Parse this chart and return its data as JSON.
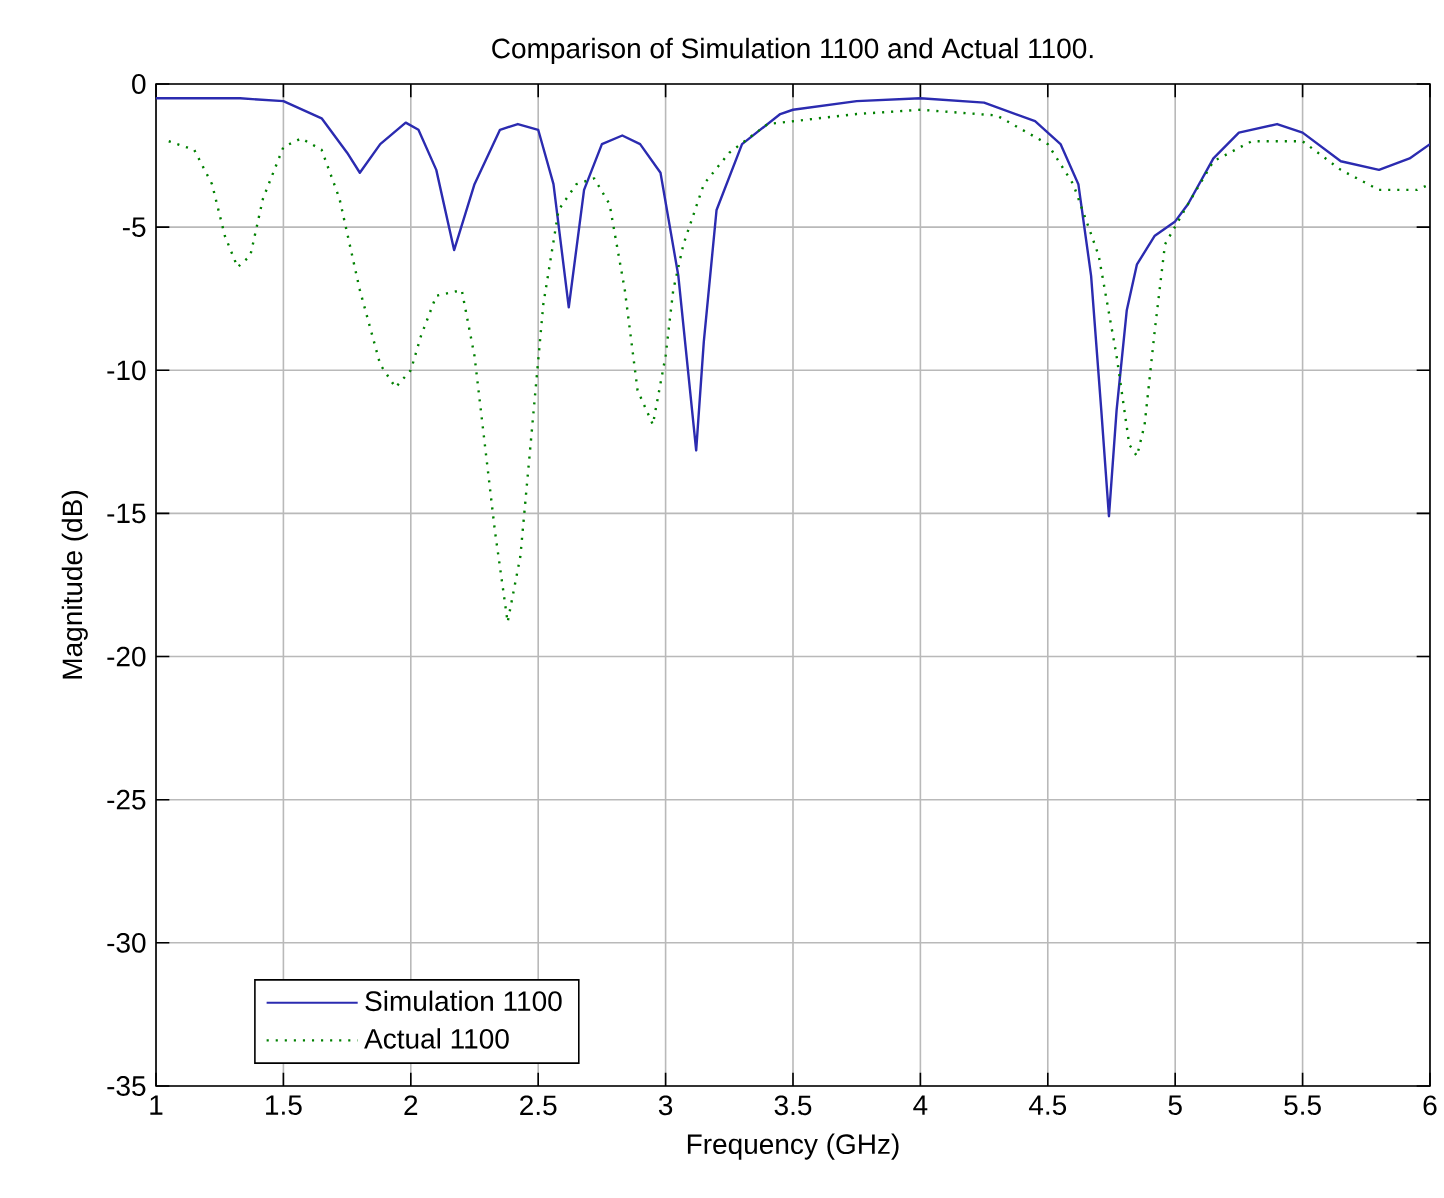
{
  "chart_data": {
    "type": "line",
    "title": "Comparison of Simulation 1100 and Actual 1100.",
    "xlabel": "Frequency (GHz)",
    "ylabel": "Magnitude (dB)",
    "xlim": [
      1,
      6
    ],
    "ylim": [
      -35,
      0
    ],
    "xticks": [
      1,
      1.5,
      2,
      2.5,
      3,
      3.5,
      4,
      4.5,
      5,
      5.5,
      6
    ],
    "yticks": [
      -35,
      -30,
      -25,
      -20,
      -15,
      -10,
      -5,
      0
    ],
    "grid": true,
    "legend": "bottom left",
    "marker": "none",
    "series": [
      {
        "name": "Simulation 1100",
        "color": "#2b2bb0",
        "line_style": "solid",
        "x": [
          1,
          1.33,
          1.5,
          1.65,
          1.75,
          1.8,
          1.88,
          1.98,
          2.03,
          2.1,
          2.17,
          2.25,
          2.35,
          2.42,
          2.5,
          2.56,
          2.62,
          2.68,
          2.75,
          2.83,
          2.9,
          2.98,
          3.05,
          3.12,
          3.15,
          3.2,
          3.3,
          3.45,
          3.5,
          3.75,
          4.0,
          4.25,
          4.45,
          4.55,
          4.62,
          4.67,
          4.71,
          4.74,
          4.77,
          4.81,
          4.85,
          4.92,
          5.0,
          5.05,
          5.15,
          5.25,
          5.4,
          5.5,
          5.65,
          5.8,
          5.92,
          6.0
        ],
        "values": [
          -0.5,
          -0.5,
          -0.6,
          -1.2,
          -2.4,
          -3.1,
          -2.1,
          -1.35,
          -1.6,
          -3.0,
          -5.8,
          -3.5,
          -1.6,
          -1.4,
          -1.6,
          -3.5,
          -7.8,
          -3.7,
          -2.1,
          -1.8,
          -2.1,
          -3.1,
          -6.7,
          -12.8,
          -9.0,
          -4.4,
          -2.1,
          -1.05,
          -0.9,
          -0.6,
          -0.5,
          -0.65,
          -1.3,
          -2.1,
          -3.5,
          -6.7,
          -11.4,
          -15.1,
          -11.4,
          -7.9,
          -6.3,
          -5.3,
          -4.8,
          -4.2,
          -2.6,
          -1.7,
          -1.4,
          -1.7,
          -2.7,
          -3.0,
          -2.6,
          -2.1
        ]
      },
      {
        "name": "Actual 1100",
        "color": "#008000",
        "line_style": "dotted",
        "x": [
          1.05,
          1.15,
          1.22,
          1.27,
          1.32,
          1.37,
          1.42,
          1.5,
          1.57,
          1.65,
          1.72,
          1.8,
          1.88,
          1.94,
          2.0,
          2.04,
          2.1,
          2.2,
          2.25,
          2.33,
          2.38,
          2.43,
          2.47,
          2.52,
          2.58,
          2.65,
          2.72,
          2.78,
          2.84,
          2.89,
          2.95,
          3.0,
          3.03,
          3.07,
          3.15,
          3.25,
          3.4,
          3.5,
          3.75,
          4.0,
          4.3,
          4.5,
          4.6,
          4.7,
          4.77,
          4.82,
          4.85,
          4.88,
          4.92,
          4.96,
          5.05,
          5.15,
          5.3,
          5.5,
          5.65,
          5.8,
          5.95,
          6.0
        ],
        "values": [
          -2.0,
          -2.3,
          -3.5,
          -5.3,
          -6.4,
          -6.0,
          -4.0,
          -2.2,
          -1.9,
          -2.3,
          -4.0,
          -7.2,
          -9.8,
          -10.6,
          -10.0,
          -8.8,
          -7.4,
          -7.2,
          -9.5,
          -15.6,
          -18.8,
          -16.5,
          -12.6,
          -7.7,
          -4.4,
          -3.5,
          -3.3,
          -4.2,
          -7.2,
          -10.7,
          -11.9,
          -9.5,
          -7.2,
          -5.6,
          -3.5,
          -2.4,
          -1.4,
          -1.3,
          -1.05,
          -0.9,
          -1.1,
          -2.1,
          -3.5,
          -6.0,
          -9.5,
          -12.6,
          -13.0,
          -11.9,
          -8.6,
          -5.6,
          -4.2,
          -2.7,
          -2.0,
          -2.0,
          -3.0,
          -3.7,
          -3.7,
          -3.5
        ]
      }
    ]
  }
}
